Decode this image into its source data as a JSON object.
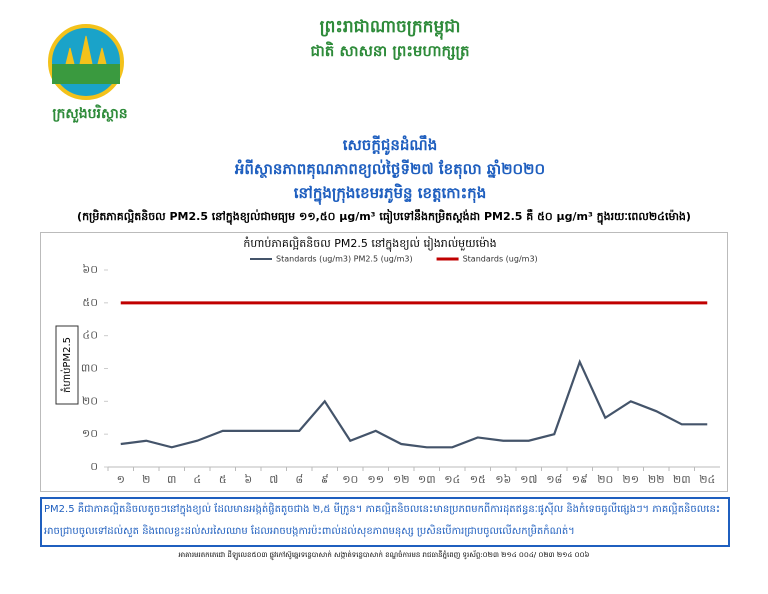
{
  "header": {
    "kingdom": "ព្រះរាជាណាចក្រកម្ពុជា",
    "motto": "ជាតិ សាសនា ព្រះមហាក្សត្រ",
    "ministry": "ក្រសួងបរិស្ថាន"
  },
  "notice": {
    "title": "សេចក្តីជូនដំណឹង",
    "subject": "អំពីស្ថានភាពគុណភាពខ្យល់ថ្ងៃទី២៧ ខែតុលា ឆ្នាំ២០២០",
    "location": "នៅក្នុងក្រុងខេមរភូមិន្ទ ខេត្តកោះកុង",
    "summary": "(កម្រិតភាគល្អិតនិចល PM2.5 នៅក្នុងខ្យល់ជាមធ្យម ១១,៥០ μg/m³ ធៀបទៅនឹងកម្រិតស្តង់ដា PM2.5 គឺ ៥០ μg/m³ ក្នុងរយៈពេល២៤ម៉ោង)"
  },
  "chart_data": {
    "type": "line",
    "title": "កំហាប់ភាគល្អិតនិចល PM2.5 នៅក្នុងខ្យល់ រៀងរាល់មួយម៉ោង",
    "y_label": "កំហាប់PM2.5",
    "categories": [
      "១",
      "២",
      "៣",
      "៤",
      "៥",
      "៦",
      "៧",
      "៨",
      "៩",
      "១០",
      "១១",
      "១២",
      "១៣",
      "១៤",
      "១៥",
      "១៦",
      "១៧",
      "១៨",
      "១៩",
      "២០",
      "២១",
      "២២",
      "២៣",
      "២៤"
    ],
    "series": [
      {
        "name": "Standards (ug/m3) PM2.5 (ug/m3)",
        "color": "#44546a",
        "values": [
          7,
          8,
          6,
          8,
          11,
          11,
          11,
          11,
          20,
          8,
          11,
          7,
          6,
          6,
          9,
          8,
          8,
          10,
          32,
          15,
          20,
          17,
          13,
          13
        ]
      },
      {
        "name": "Standards (ug/m3)",
        "color": "#c00000",
        "values": [
          50,
          50,
          50,
          50,
          50,
          50,
          50,
          50,
          50,
          50,
          50,
          50,
          50,
          50,
          50,
          50,
          50,
          50,
          50,
          50,
          50,
          50,
          50,
          50
        ]
      }
    ],
    "ylim": [
      0,
      60
    ],
    "yticks": [
      {
        "value": 0,
        "label": "០"
      },
      {
        "value": 10,
        "label": "១០"
      },
      {
        "value": 20,
        "label": "២០"
      },
      {
        "value": 30,
        "label": "៣០"
      },
      {
        "value": 40,
        "label": "៤០"
      },
      {
        "value": 50,
        "label": "៥០"
      },
      {
        "value": 60,
        "label": "៦០"
      }
    ],
    "legend": "top"
  },
  "footnote": {
    "text": "PM2.5 គឺជាភាគល្អិតនិចលតូចៗនៅក្នុងខ្យល់ ដែលមានអង្កត់ផ្ចិតតូចជាង ២,៥ មីក្រូន។ ភាគល្អិតនិចលនេះមានប្រភពមកពីការដុតឥន្ធនៈផូស៊ីល និងកំទេចធូលីផ្សេងៗ។ ភាគល្អិតនិចលនេះអាចជ្រាបចូលទៅដល់សួត និងពេលខ្លះដល់សរសៃឈាម ដែលអាចបង្កការប៉ះពាល់ដល់សុខភាពមនុស្ស ប្រសិនបើការជ្រាបចូលលើសកម្រិតកំណត់។"
  },
  "address": "អាគារមរតកតេជោ ដីឡូលេខ៥០៣ ផ្លូវកៅស៊ូឆ្នេរទន្លេបាសាក់ សង្កាត់ទន្លេបាសាក់ ខណ្ឌចំការមន រាជធានីភ្នំពេញ ទូរស័ព្ទ:០២៣ ២១៤ ០០៤/ ០២៣ ២១៤ ០០៦"
}
